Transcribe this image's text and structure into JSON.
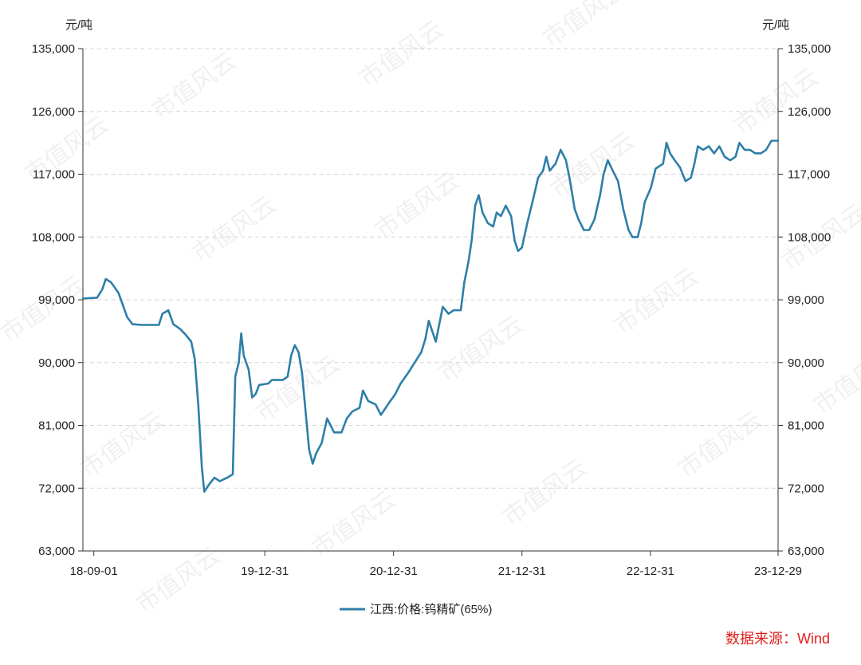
{
  "chart_data": {
    "type": "line",
    "title": "",
    "xlabel": "",
    "y_unit_left": "元/吨",
    "y_unit_right": "元/吨",
    "ylim": [
      63000,
      135000
    ],
    "yticks": [
      63000,
      72000,
      81000,
      90000,
      99000,
      108000,
      117000,
      126000,
      135000
    ],
    "ytick_labels": [
      "63,000",
      "72,000",
      "81,000",
      "90,000",
      "99,000",
      "108,000",
      "117,000",
      "126,000",
      "135,000"
    ],
    "xlim": [
      "2018-08-01",
      "2023-12-29"
    ],
    "xticks": [
      "2018-09-01",
      "2019-12-31",
      "2020-12-31",
      "2021-12-31",
      "2022-12-31",
      "2023-12-29"
    ],
    "xtick_labels": [
      "18-09-01",
      "19-12-31",
      "20-12-31",
      "21-12-31",
      "22-12-31",
      "23-12-29"
    ],
    "grid": true,
    "legend_position": "bottom-center",
    "series": [
      {
        "name": "江西:价格:钨精矿(65%)",
        "color": "#2e7fa8",
        "points": [
          [
            "2018-08-01",
            99200
          ],
          [
            "2018-09-10",
            99300
          ],
          [
            "2018-09-25",
            100500
          ],
          [
            "2018-10-05",
            102000
          ],
          [
            "2018-10-20",
            101500
          ],
          [
            "2018-11-10",
            100000
          ],
          [
            "2018-12-05",
            96500
          ],
          [
            "2018-12-20",
            95500
          ],
          [
            "2019-01-15",
            95400
          ],
          [
            "2019-02-15",
            95400
          ],
          [
            "2019-03-05",
            95400
          ],
          [
            "2019-03-15",
            97000
          ],
          [
            "2019-04-01",
            97500
          ],
          [
            "2019-04-15",
            95500
          ],
          [
            "2019-05-05",
            94800
          ],
          [
            "2019-05-20",
            94000
          ],
          [
            "2019-06-05",
            93000
          ],
          [
            "2019-06-15",
            90500
          ],
          [
            "2019-06-25",
            84000
          ],
          [
            "2019-07-05",
            75000
          ],
          [
            "2019-07-12",
            71500
          ],
          [
            "2019-07-25",
            72500
          ],
          [
            "2019-08-10",
            73500
          ],
          [
            "2019-08-25",
            73000
          ],
          [
            "2019-09-15",
            73500
          ],
          [
            "2019-10-01",
            74000
          ],
          [
            "2019-10-08",
            88000
          ],
          [
            "2019-10-18",
            90000
          ],
          [
            "2019-10-25",
            94200
          ],
          [
            "2019-11-01",
            91000
          ],
          [
            "2019-11-15",
            89000
          ],
          [
            "2019-11-25",
            85000
          ],
          [
            "2019-12-05",
            85500
          ],
          [
            "2019-12-15",
            86800
          ],
          [
            "2020-01-10",
            87000
          ],
          [
            "2020-01-20",
            87500
          ],
          [
            "2020-02-20",
            87500
          ],
          [
            "2020-03-05",
            88000
          ],
          [
            "2020-03-15",
            91000
          ],
          [
            "2020-03-25",
            92500
          ],
          [
            "2020-04-05",
            91500
          ],
          [
            "2020-04-15",
            88500
          ],
          [
            "2020-04-25",
            83000
          ],
          [
            "2020-05-05",
            77500
          ],
          [
            "2020-05-15",
            75500
          ],
          [
            "2020-05-25",
            77000
          ],
          [
            "2020-06-10",
            78500
          ],
          [
            "2020-06-25",
            82000
          ],
          [
            "2020-07-05",
            81000
          ],
          [
            "2020-07-15",
            80000
          ],
          [
            "2020-08-05",
            80000
          ],
          [
            "2020-08-20",
            82000
          ],
          [
            "2020-09-05",
            83000
          ],
          [
            "2020-09-25",
            83500
          ],
          [
            "2020-10-05",
            86000
          ],
          [
            "2020-10-20",
            84500
          ],
          [
            "2020-11-10",
            84000
          ],
          [
            "2020-11-25",
            82500
          ],
          [
            "2020-12-15",
            84000
          ],
          [
            "2021-01-05",
            85500
          ],
          [
            "2021-01-20",
            87000
          ],
          [
            "2021-02-10",
            88500
          ],
          [
            "2021-03-01",
            90000
          ],
          [
            "2021-03-20",
            91500
          ],
          [
            "2021-04-01",
            93500
          ],
          [
            "2021-04-10",
            96000
          ],
          [
            "2021-04-20",
            94500
          ],
          [
            "2021-04-30",
            93000
          ],
          [
            "2021-05-10",
            95500
          ],
          [
            "2021-05-20",
            98000
          ],
          [
            "2021-06-05",
            97000
          ],
          [
            "2021-06-20",
            97500
          ],
          [
            "2021-07-10",
            97500
          ],
          [
            "2021-07-20",
            101500
          ],
          [
            "2021-08-01",
            104500
          ],
          [
            "2021-08-10",
            107500
          ],
          [
            "2021-08-20",
            112500
          ],
          [
            "2021-08-30",
            114000
          ],
          [
            "2021-09-10",
            111500
          ],
          [
            "2021-09-25",
            110000
          ],
          [
            "2021-10-10",
            109500
          ],
          [
            "2021-10-20",
            111500
          ],
          [
            "2021-11-01",
            111000
          ],
          [
            "2021-11-15",
            112500
          ],
          [
            "2021-11-30",
            111000
          ],
          [
            "2021-12-10",
            107500
          ],
          [
            "2021-12-20",
            106000
          ],
          [
            "2021-12-31",
            106500
          ],
          [
            "2022-01-15",
            110000
          ],
          [
            "2022-02-01",
            113500
          ],
          [
            "2022-02-15",
            116500
          ],
          [
            "2022-03-01",
            117500
          ],
          [
            "2022-03-10",
            119500
          ],
          [
            "2022-03-20",
            117500
          ],
          [
            "2022-04-05",
            118500
          ],
          [
            "2022-04-20",
            120500
          ],
          [
            "2022-05-05",
            119000
          ],
          [
            "2022-05-15",
            116500
          ],
          [
            "2022-05-30",
            112000
          ],
          [
            "2022-06-10",
            110500
          ],
          [
            "2022-06-25",
            109000
          ],
          [
            "2022-07-10",
            109000
          ],
          [
            "2022-07-25",
            110500
          ],
          [
            "2022-08-10",
            114000
          ],
          [
            "2022-08-20",
            117000
          ],
          [
            "2022-09-01",
            119000
          ],
          [
            "2022-09-15",
            117500
          ],
          [
            "2022-09-30",
            116000
          ],
          [
            "2022-10-15",
            112000
          ],
          [
            "2022-10-30",
            109000
          ],
          [
            "2022-11-10",
            108000
          ],
          [
            "2022-11-25",
            108000
          ],
          [
            "2022-12-05",
            110000
          ],
          [
            "2022-12-15",
            113000
          ],
          [
            "2023-01-01",
            115000
          ],
          [
            "2023-01-15",
            117800
          ],
          [
            "2023-02-05",
            118500
          ],
          [
            "2023-02-15",
            121500
          ],
          [
            "2023-02-25",
            120000
          ],
          [
            "2023-03-10",
            119000
          ],
          [
            "2023-03-25",
            118000
          ],
          [
            "2023-04-10",
            116000
          ],
          [
            "2023-04-25",
            116500
          ],
          [
            "2023-05-05",
            118500
          ],
          [
            "2023-05-15",
            121000
          ],
          [
            "2023-05-30",
            120500
          ],
          [
            "2023-06-15",
            121000
          ],
          [
            "2023-06-30",
            120000
          ],
          [
            "2023-07-15",
            121000
          ],
          [
            "2023-07-30",
            119500
          ],
          [
            "2023-08-15",
            119000
          ],
          [
            "2023-08-30",
            119500
          ],
          [
            "2023-09-10",
            121500
          ],
          [
            "2023-09-25",
            120500
          ],
          [
            "2023-10-10",
            120500
          ],
          [
            "2023-10-25",
            120000
          ],
          [
            "2023-11-10",
            120000
          ],
          [
            "2023-11-25",
            120500
          ],
          [
            "2023-12-10",
            121800
          ],
          [
            "2023-12-29",
            121800
          ]
        ]
      }
    ],
    "source": "数据来源：Wind"
  },
  "watermark_text": "市值风云"
}
